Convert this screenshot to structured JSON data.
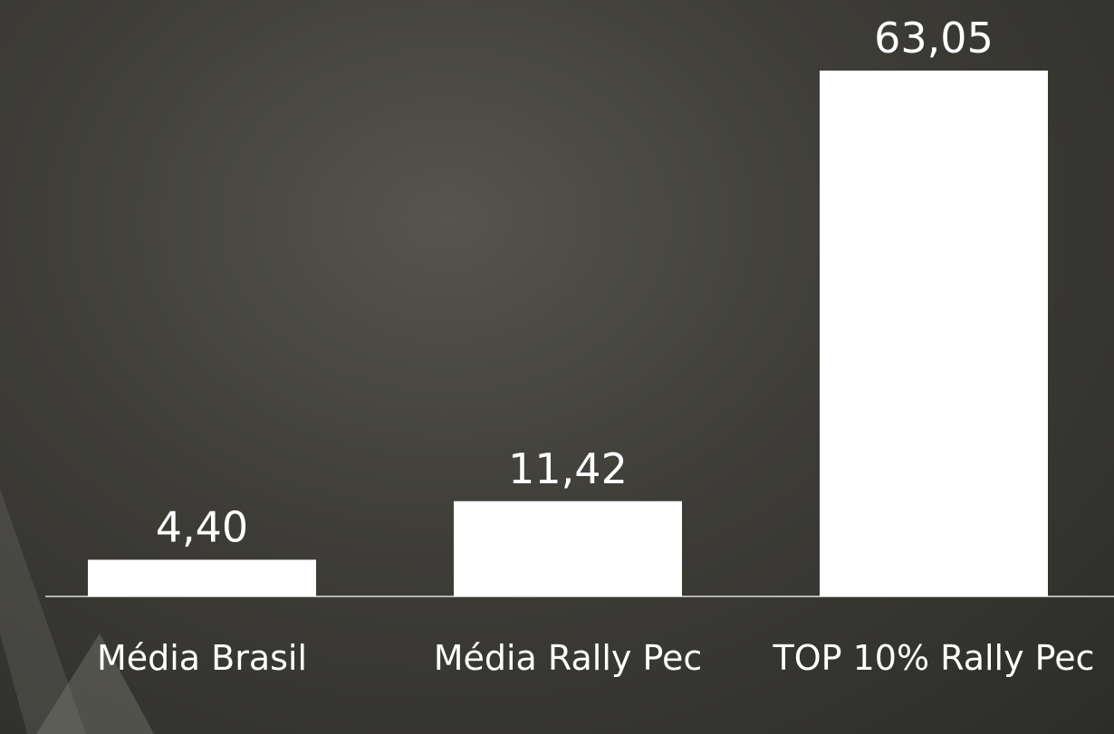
{
  "chart_data": {
    "type": "bar",
    "categories": [
      "Média Brasil",
      "Média Rally Pec",
      "TOP 10% Rally Pec"
    ],
    "values": [
      4.4,
      11.42,
      63.05
    ],
    "value_labels": [
      "4,40",
      "11,42",
      "63,05"
    ],
    "color": "#ffffff"
  }
}
